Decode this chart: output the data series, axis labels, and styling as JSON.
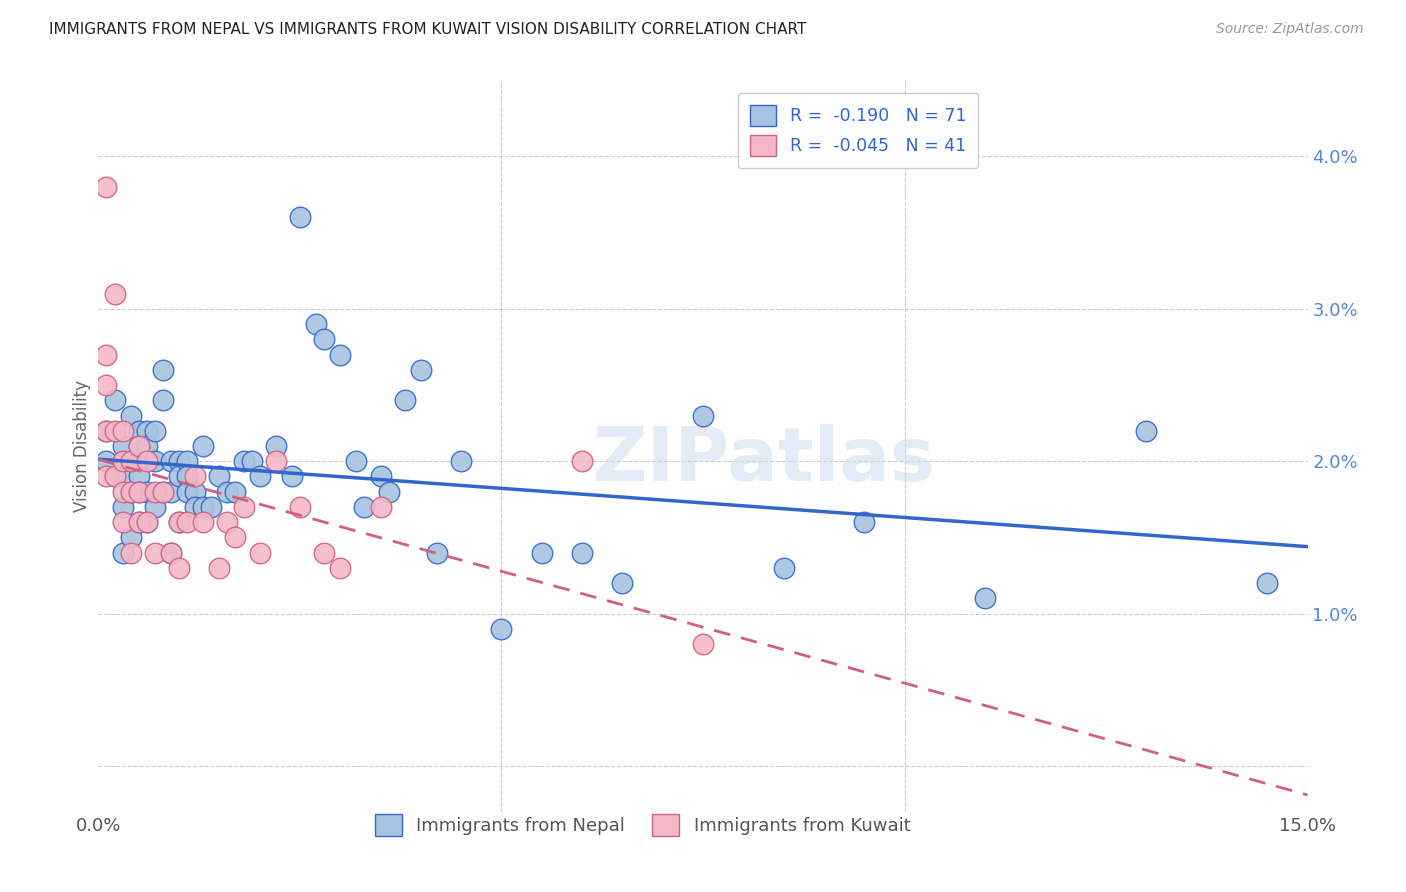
{
  "title": "IMMIGRANTS FROM NEPAL VS IMMIGRANTS FROM KUWAIT VISION DISABILITY CORRELATION CHART",
  "source": "Source: ZipAtlas.com",
  "ylabel": "Vision Disability",
  "xlim": [
    0.0,
    0.15
  ],
  "ylim": [
    -0.003,
    0.045
  ],
  "nepal_color": "#a8c4e0",
  "kuwait_color": "#f4b8c8",
  "nepal_R": -0.19,
  "nepal_N": 71,
  "kuwait_R": -0.045,
  "kuwait_N": 41,
  "nepal_line_color": "#3366cc",
  "kuwait_line_color": "#d06080",
  "watermark": "ZIPatlas",
  "nepal_scatter_x": [
    0.001,
    0.001,
    0.002,
    0.002,
    0.003,
    0.003,
    0.003,
    0.003,
    0.004,
    0.004,
    0.004,
    0.004,
    0.005,
    0.005,
    0.005,
    0.005,
    0.005,
    0.006,
    0.006,
    0.006,
    0.006,
    0.007,
    0.007,
    0.007,
    0.008,
    0.008,
    0.008,
    0.009,
    0.009,
    0.009,
    0.01,
    0.01,
    0.01,
    0.011,
    0.011,
    0.011,
    0.012,
    0.012,
    0.013,
    0.013,
    0.014,
    0.015,
    0.016,
    0.017,
    0.018,
    0.019,
    0.02,
    0.022,
    0.024,
    0.025,
    0.027,
    0.028,
    0.03,
    0.032,
    0.033,
    0.035,
    0.036,
    0.038,
    0.04,
    0.042,
    0.045,
    0.05,
    0.055,
    0.06,
    0.065,
    0.075,
    0.085,
    0.095,
    0.11,
    0.13,
    0.145
  ],
  "nepal_scatter_y": [
    0.022,
    0.02,
    0.024,
    0.019,
    0.021,
    0.019,
    0.017,
    0.014,
    0.023,
    0.02,
    0.018,
    0.015,
    0.022,
    0.021,
    0.019,
    0.018,
    0.016,
    0.022,
    0.021,
    0.018,
    0.016,
    0.022,
    0.02,
    0.017,
    0.026,
    0.024,
    0.018,
    0.02,
    0.018,
    0.014,
    0.02,
    0.019,
    0.016,
    0.02,
    0.019,
    0.018,
    0.018,
    0.017,
    0.021,
    0.017,
    0.017,
    0.019,
    0.018,
    0.018,
    0.02,
    0.02,
    0.019,
    0.021,
    0.019,
    0.036,
    0.029,
    0.028,
    0.027,
    0.02,
    0.017,
    0.019,
    0.018,
    0.024,
    0.026,
    0.014,
    0.02,
    0.009,
    0.014,
    0.014,
    0.012,
    0.023,
    0.013,
    0.016,
    0.011,
    0.022,
    0.012
  ],
  "kuwait_scatter_x": [
    0.001,
    0.001,
    0.001,
    0.001,
    0.001,
    0.002,
    0.002,
    0.002,
    0.003,
    0.003,
    0.003,
    0.003,
    0.004,
    0.004,
    0.004,
    0.005,
    0.005,
    0.005,
    0.006,
    0.006,
    0.007,
    0.007,
    0.008,
    0.009,
    0.01,
    0.01,
    0.011,
    0.012,
    0.013,
    0.015,
    0.016,
    0.017,
    0.018,
    0.02,
    0.022,
    0.025,
    0.028,
    0.03,
    0.035,
    0.075,
    0.06
  ],
  "kuwait_scatter_y": [
    0.038,
    0.027,
    0.025,
    0.022,
    0.019,
    0.031,
    0.022,
    0.019,
    0.022,
    0.02,
    0.018,
    0.016,
    0.02,
    0.018,
    0.014,
    0.021,
    0.018,
    0.016,
    0.02,
    0.016,
    0.018,
    0.014,
    0.018,
    0.014,
    0.016,
    0.013,
    0.016,
    0.019,
    0.016,
    0.013,
    0.016,
    0.015,
    0.017,
    0.014,
    0.02,
    0.017,
    0.014,
    0.013,
    0.017,
    0.008,
    0.02
  ]
}
